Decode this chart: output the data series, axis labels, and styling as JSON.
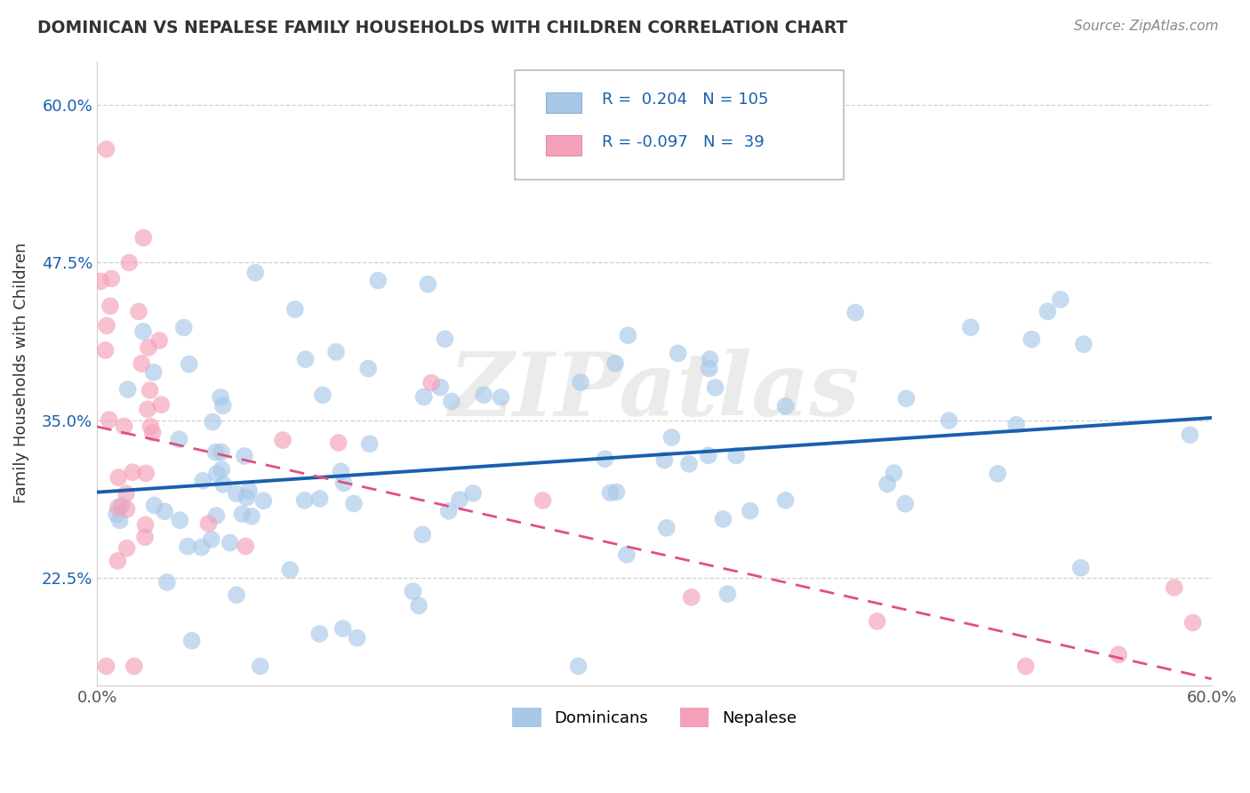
{
  "title": "DOMINICAN VS NEPALESE FAMILY HOUSEHOLDS WITH CHILDREN CORRELATION CHART",
  "source": "Source: ZipAtlas.com",
  "ylabel": "Family Households with Children",
  "xlim": [
    0.0,
    0.6
  ],
  "ylim": [
    0.14,
    0.635
  ],
  "x_tick_positions": [
    0.0,
    0.1,
    0.2,
    0.3,
    0.4,
    0.5,
    0.6
  ],
  "x_tick_labels": [
    "0.0%",
    "",
    "",
    "",
    "",
    "",
    "60.0%"
  ],
  "y_tick_positions": [
    0.225,
    0.35,
    0.475,
    0.6
  ],
  "y_tick_labels": [
    "22.5%",
    "35.0%",
    "47.5%",
    "60.0%"
  ],
  "blue_R": 0.204,
  "blue_N": 105,
  "pink_R": -0.097,
  "pink_N": 39,
  "blue_color": "#a8c8e8",
  "pink_color": "#f4a0b8",
  "blue_line_color": "#1a5fad",
  "pink_line_color": "#e05080",
  "background_color": "#ffffff",
  "watermark": "ZIPatlas",
  "legend_labels": [
    "Dominicans",
    "Nepalese"
  ],
  "legend_text_color": "#1a5fad",
  "grid_color": "#cccccc",
  "title_color": "#333333",
  "source_color": "#888888",
  "ylabel_color": "#333333"
}
